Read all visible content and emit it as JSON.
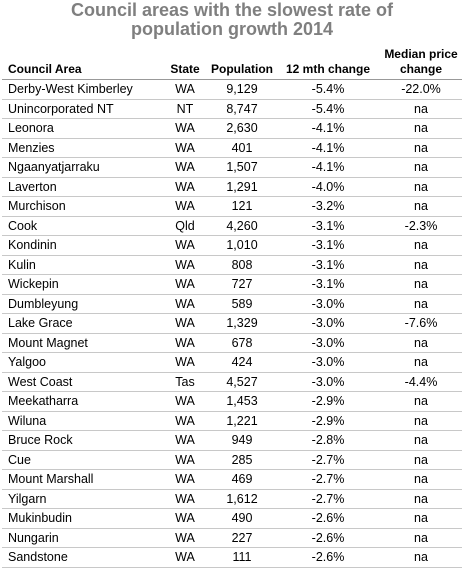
{
  "title": "Council areas with the slowest rate of population growth 2014",
  "table": {
    "header": [
      "Council Area",
      "State",
      "Population",
      "12 mth change",
      "Median price change"
    ],
    "rows": [
      [
        "Derby-West Kimberley",
        "WA",
        "9,129",
        "-5.4%",
        "-22.0%"
      ],
      [
        "Unincorporated NT",
        "NT",
        "8,747",
        "-5.4%",
        "na"
      ],
      [
        "Leonora",
        "WA",
        "2,630",
        "-4.1%",
        "na"
      ],
      [
        "Menzies",
        "WA",
        "401",
        "-4.1%",
        "na"
      ],
      [
        "Ngaanyatjarraku",
        "WA",
        "1,507",
        "-4.1%",
        "na"
      ],
      [
        "Laverton",
        "WA",
        "1,291",
        "-4.0%",
        "na"
      ],
      [
        "Murchison",
        "WA",
        "121",
        "-3.2%",
        "na"
      ],
      [
        "Cook",
        "Qld",
        "4,260",
        "-3.1%",
        "-2.3%"
      ],
      [
        "Kondinin",
        "WA",
        "1,010",
        "-3.1%",
        "na"
      ],
      [
        "Kulin",
        "WA",
        "808",
        "-3.1%",
        "na"
      ],
      [
        "Wickepin",
        "WA",
        "727",
        "-3.1%",
        "na"
      ],
      [
        "Dumbleyung",
        "WA",
        "589",
        "-3.0%",
        "na"
      ],
      [
        "Lake Grace",
        "WA",
        "1,329",
        "-3.0%",
        "-7.6%"
      ],
      [
        "Mount Magnet",
        "WA",
        "678",
        "-3.0%",
        "na"
      ],
      [
        "Yalgoo",
        "WA",
        "424",
        "-3.0%",
        "na"
      ],
      [
        "West Coast",
        "Tas",
        "4,527",
        "-3.0%",
        "-4.4%"
      ],
      [
        "Meekatharra",
        "WA",
        "1,453",
        "-2.9%",
        "na"
      ],
      [
        "Wiluna",
        "WA",
        "1,221",
        "-2.9%",
        "na"
      ],
      [
        "Bruce Rock",
        "WA",
        "949",
        "-2.8%",
        "na"
      ],
      [
        "Cue",
        "WA",
        "285",
        "-2.7%",
        "na"
      ],
      [
        "Mount Marshall",
        "WA",
        "469",
        "-2.7%",
        "na"
      ],
      [
        "Yilgarn",
        "WA",
        "1,612",
        "-2.7%",
        "na"
      ],
      [
        "Mukinbudin",
        "WA",
        "490",
        "-2.6%",
        "na"
      ],
      [
        "Nungarin",
        "WA",
        "227",
        "-2.6%",
        "na"
      ],
      [
        "Sandstone",
        "WA",
        "111",
        "-2.6%",
        "na"
      ]
    ]
  }
}
